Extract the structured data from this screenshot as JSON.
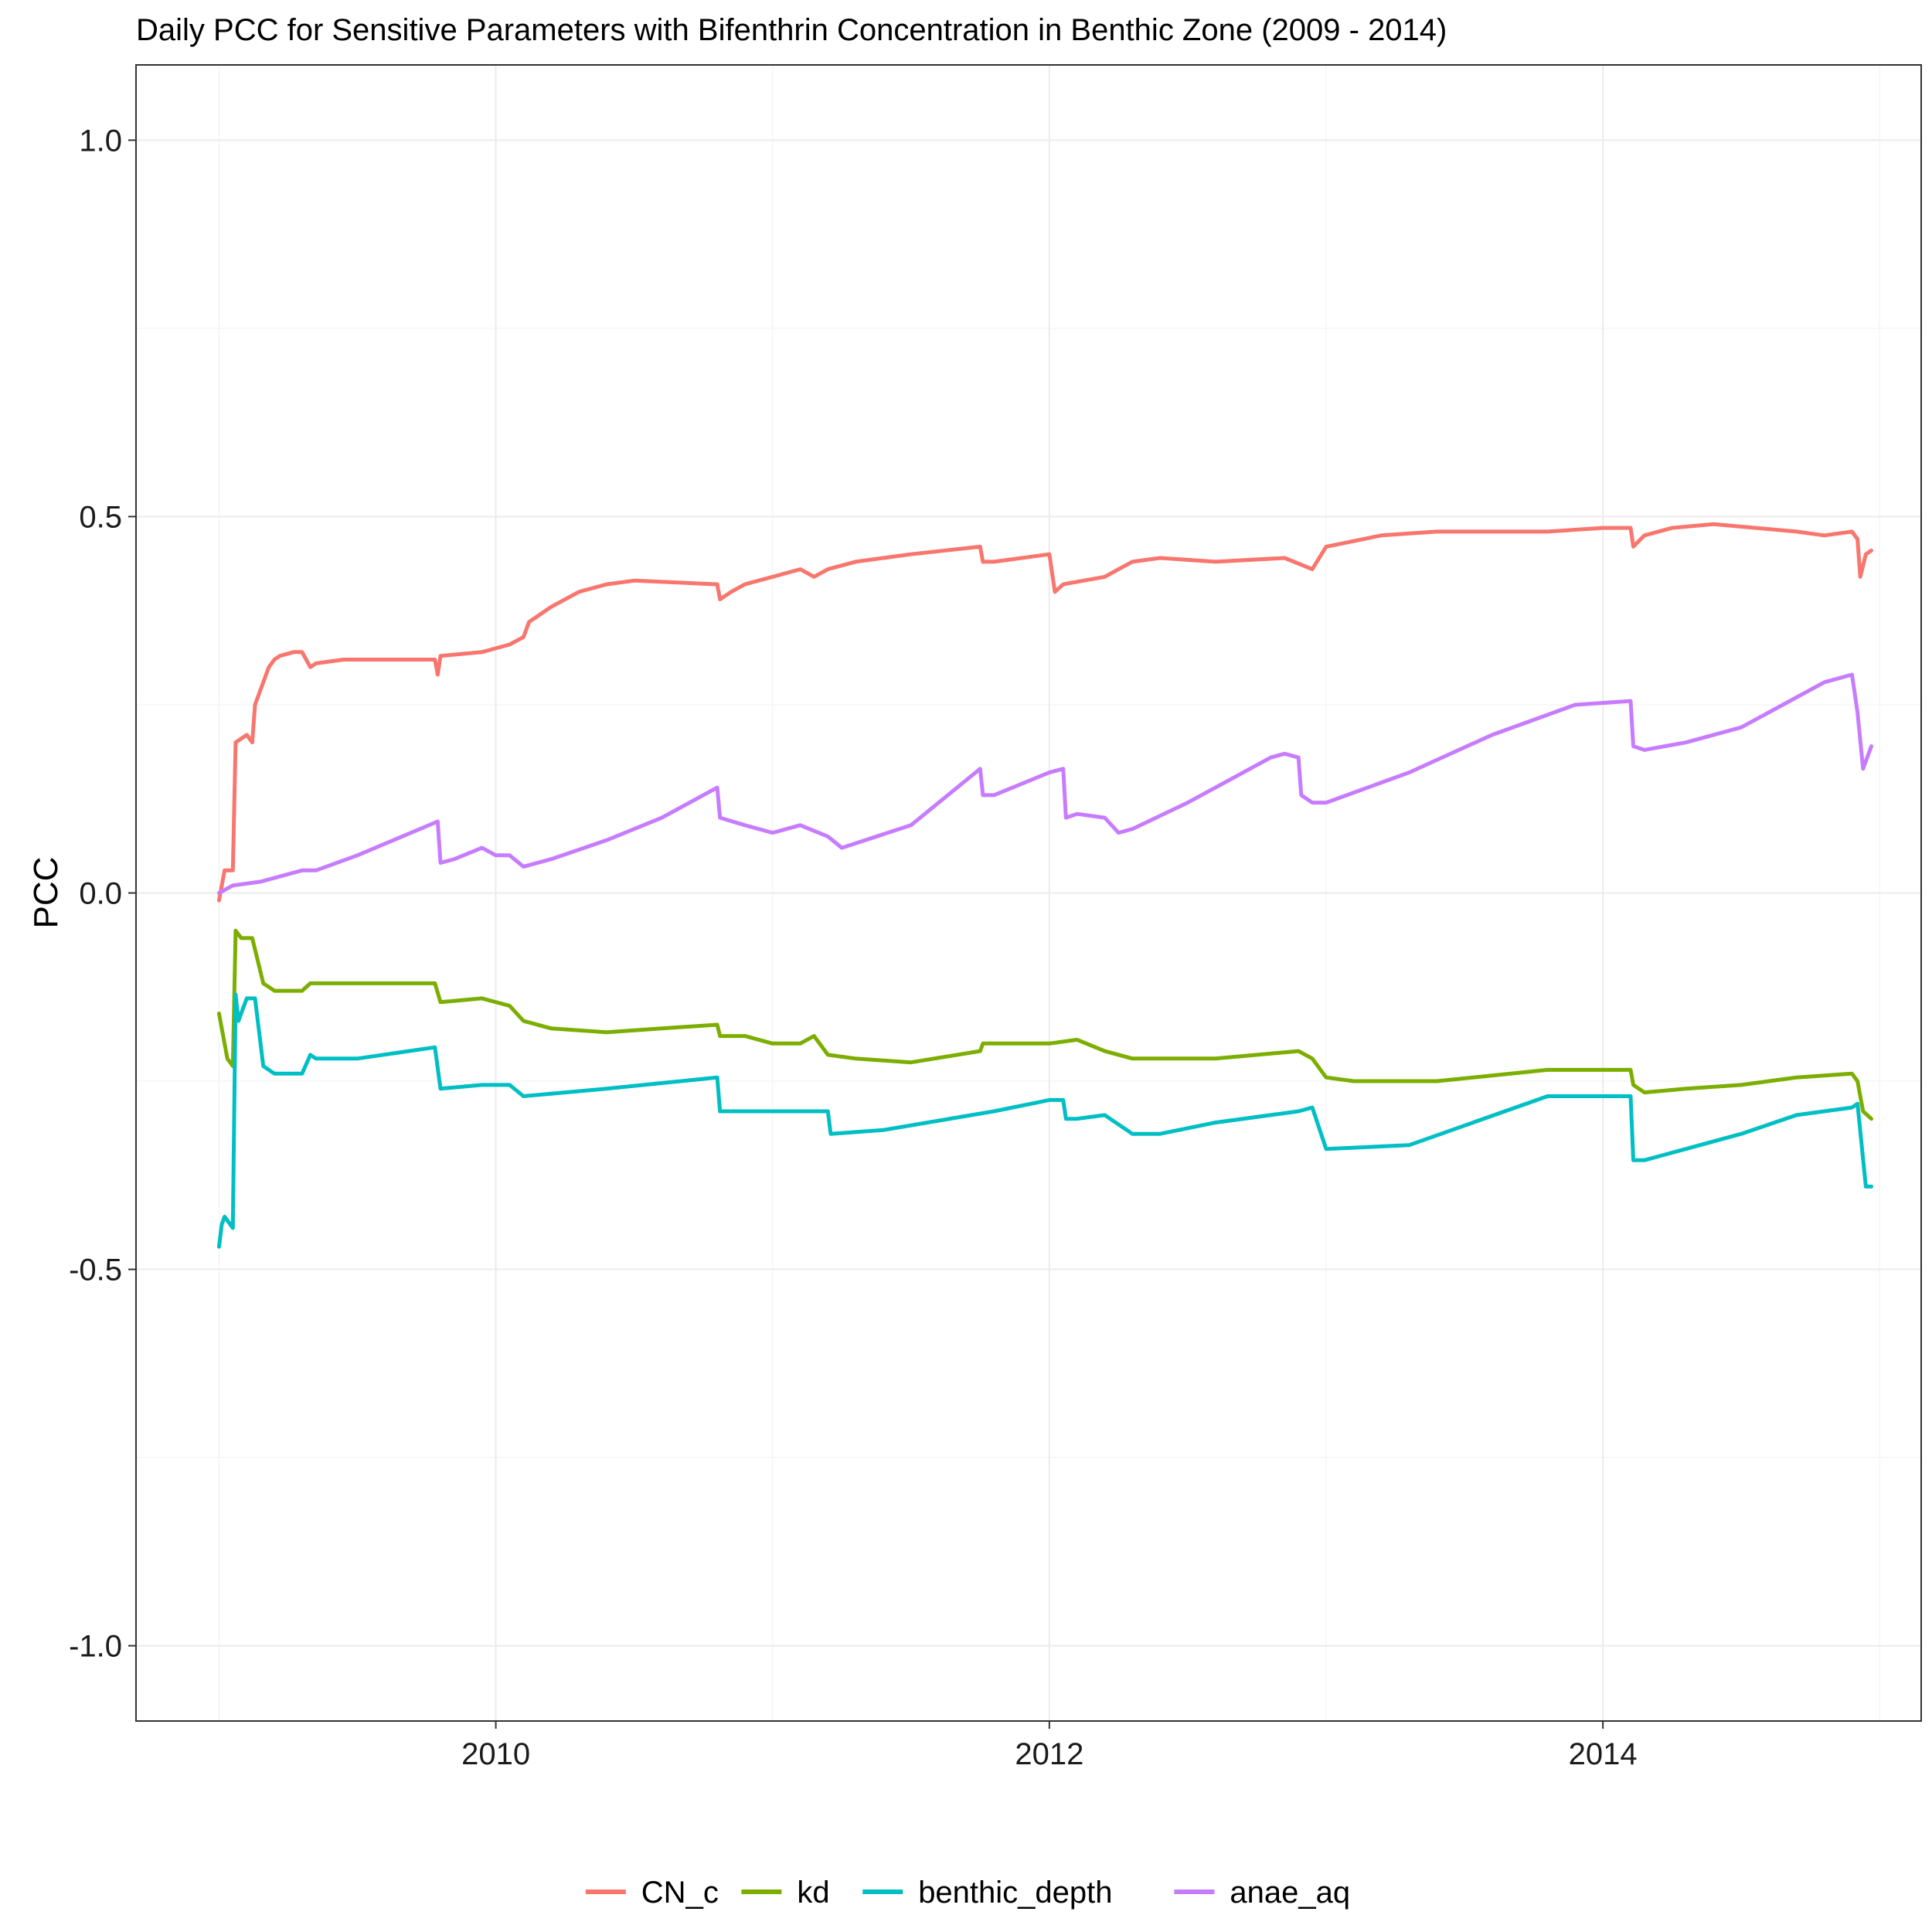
{
  "chart_data": {
    "type": "line",
    "title": "Daily PCC for Sensitive Parameters with Bifenthrin Concentration in Benthic Zone (2009 - 2014)",
    "xlabel": "",
    "ylabel": "PCC",
    "xlim": [
      2008.7,
      2015.15
    ],
    "ylim": [
      -1.1,
      1.1
    ],
    "x_ticks": [
      2010,
      2012,
      2014
    ],
    "x_tick_labels": [
      "2010",
      "2012",
      "2014"
    ],
    "y_ticks": [
      1.0,
      0.5,
      0.0,
      -0.5,
      -1.0
    ],
    "y_tick_labels": [
      "1.0",
      "0.5",
      "0.0",
      "-0.5",
      "-1.0"
    ],
    "grid": true,
    "legend_position": "bottom",
    "series": [
      {
        "name": "CN_c",
        "color": "#F8766D",
        "x": [
          2009.0,
          2009.02,
          2009.05,
          2009.06,
          2009.1,
          2009.12,
          2009.13,
          2009.16,
          2009.18,
          2009.2,
          2009.22,
          2009.27,
          2009.3,
          2009.33,
          2009.35,
          2009.45,
          2009.58,
          2009.73,
          2009.78,
          2009.79,
          2009.8,
          2009.95,
          2010.05,
          2010.1,
          2010.12,
          2010.2,
          2010.3,
          2010.4,
          2010.5,
          2010.8,
          2010.81,
          2010.85,
          2010.9,
          2011.0,
          2011.1,
          2011.15,
          2011.2,
          2011.3,
          2011.5,
          2011.75,
          2011.76,
          2011.8,
          2012.0,
          2012.02,
          2012.05,
          2012.2,
          2012.25,
          2012.3,
          2012.4,
          2012.6,
          2012.85,
          2012.95,
          2013.0,
          2013.2,
          2013.4,
          2013.8,
          2014.0,
          2014.1,
          2014.11,
          2014.15,
          2014.25,
          2014.4,
          2014.7,
          2014.8,
          2014.9,
          2014.92,
          2014.93,
          2014.95,
          2014.97
        ],
        "values": [
          -0.01,
          0.03,
          0.03,
          0.2,
          0.21,
          0.2,
          0.25,
          0.28,
          0.3,
          0.31,
          0.315,
          0.32,
          0.32,
          0.3,
          0.305,
          0.31,
          0.31,
          0.31,
          0.31,
          0.29,
          0.315,
          0.32,
          0.33,
          0.34,
          0.36,
          0.38,
          0.4,
          0.41,
          0.415,
          0.41,
          0.39,
          0.4,
          0.41,
          0.42,
          0.43,
          0.42,
          0.43,
          0.44,
          0.45,
          0.46,
          0.44,
          0.44,
          0.45,
          0.4,
          0.41,
          0.42,
          0.43,
          0.44,
          0.445,
          0.44,
          0.445,
          0.43,
          0.46,
          0.475,
          0.48,
          0.48,
          0.485,
          0.485,
          0.46,
          0.475,
          0.485,
          0.49,
          0.48,
          0.475,
          0.48,
          0.47,
          0.42,
          0.45,
          0.455
        ]
      },
      {
        "name": "kd",
        "color": "#7CAE00",
        "x": [
          2009.0,
          2009.03,
          2009.05,
          2009.06,
          2009.08,
          2009.12,
          2009.16,
          2009.2,
          2009.3,
          2009.33,
          2009.35,
          2009.5,
          2009.78,
          2009.8,
          2009.95,
          2010.05,
          2010.1,
          2010.2,
          2010.4,
          2010.6,
          2010.8,
          2010.81,
          2010.9,
          2011.0,
          2011.1,
          2011.15,
          2011.2,
          2011.3,
          2011.5,
          2011.75,
          2011.76,
          2011.8,
          2012.0,
          2012.1,
          2012.2,
          2012.3,
          2012.6,
          2012.9,
          2012.95,
          2013.0,
          2013.1,
          2013.4,
          2013.8,
          2014.1,
          2014.11,
          2014.15,
          2014.3,
          2014.5,
          2014.7,
          2014.9,
          2014.92,
          2014.94,
          2014.97
        ],
        "values": [
          -0.16,
          -0.22,
          -0.23,
          -0.05,
          -0.06,
          -0.06,
          -0.12,
          -0.13,
          -0.13,
          -0.12,
          -0.12,
          -0.12,
          -0.12,
          -0.145,
          -0.14,
          -0.15,
          -0.17,
          -0.18,
          -0.185,
          -0.18,
          -0.175,
          -0.19,
          -0.19,
          -0.2,
          -0.2,
          -0.19,
          -0.215,
          -0.22,
          -0.225,
          -0.21,
          -0.2,
          -0.2,
          -0.2,
          -0.195,
          -0.21,
          -0.22,
          -0.22,
          -0.21,
          -0.22,
          -0.245,
          -0.25,
          -0.25,
          -0.235,
          -0.235,
          -0.255,
          -0.265,
          -0.26,
          -0.255,
          -0.245,
          -0.24,
          -0.25,
          -0.29,
          -0.3
        ]
      },
      {
        "name": "benthic_depth",
        "color": "#00BFC4",
        "x": [
          2009.0,
          2009.01,
          2009.02,
          2009.05,
          2009.06,
          2009.07,
          2009.1,
          2009.13,
          2009.16,
          2009.2,
          2009.3,
          2009.33,
          2009.35,
          2009.5,
          2009.78,
          2009.8,
          2009.95,
          2010.05,
          2010.1,
          2010.4,
          2010.8,
          2010.81,
          2010.85,
          2011.2,
          2011.21,
          2011.4,
          2011.8,
          2012.0,
          2012.05,
          2012.06,
          2012.1,
          2012.2,
          2012.3,
          2012.31,
          2012.4,
          2012.6,
          2012.9,
          2012.95,
          2013.0,
          2013.3,
          2013.8,
          2014.1,
          2014.11,
          2014.15,
          2014.3,
          2014.5,
          2014.7,
          2014.9,
          2014.92,
          2014.95,
          2014.97
        ],
        "values": [
          -0.47,
          -0.44,
          -0.43,
          -0.445,
          -0.135,
          -0.17,
          -0.14,
          -0.14,
          -0.23,
          -0.24,
          -0.24,
          -0.215,
          -0.22,
          -0.22,
          -0.205,
          -0.26,
          -0.255,
          -0.255,
          -0.27,
          -0.26,
          -0.245,
          -0.29,
          -0.29,
          -0.29,
          -0.32,
          -0.315,
          -0.29,
          -0.275,
          -0.275,
          -0.3,
          -0.3,
          -0.295,
          -0.32,
          -0.32,
          -0.32,
          -0.305,
          -0.29,
          -0.285,
          -0.34,
          -0.335,
          -0.27,
          -0.27,
          -0.355,
          -0.355,
          -0.34,
          -0.32,
          -0.295,
          -0.285,
          -0.28,
          -0.39,
          -0.39
        ]
      },
      {
        "name": "anae_aq",
        "color": "#C77CFF",
        "x": [
          2009.0,
          2009.05,
          2009.15,
          2009.3,
          2009.35,
          2009.5,
          2009.79,
          2009.8,
          2009.85,
          2009.95,
          2010.0,
          2010.05,
          2010.1,
          2010.2,
          2010.4,
          2010.6,
          2010.8,
          2010.81,
          2010.9,
          2011.0,
          2011.1,
          2011.2,
          2011.25,
          2011.5,
          2011.75,
          2011.76,
          2011.8,
          2012.0,
          2012.05,
          2012.06,
          2012.1,
          2012.2,
          2012.25,
          2012.3,
          2012.5,
          2012.8,
          2012.85,
          2012.9,
          2012.91,
          2012.95,
          2013.0,
          2013.3,
          2013.6,
          2013.9,
          2014.1,
          2014.11,
          2014.15,
          2014.3,
          2014.5,
          2014.8,
          2014.9,
          2014.92,
          2014.94,
          2014.97
        ],
        "values": [
          0.0,
          0.01,
          0.015,
          0.03,
          0.03,
          0.05,
          0.095,
          0.04,
          0.045,
          0.06,
          0.05,
          0.05,
          0.035,
          0.045,
          0.07,
          0.1,
          0.14,
          0.1,
          0.09,
          0.08,
          0.09,
          0.075,
          0.06,
          0.09,
          0.165,
          0.13,
          0.13,
          0.16,
          0.165,
          0.1,
          0.105,
          0.1,
          0.08,
          0.085,
          0.12,
          0.18,
          0.185,
          0.18,
          0.13,
          0.12,
          0.12,
          0.16,
          0.21,
          0.25,
          0.255,
          0.195,
          0.19,
          0.2,
          0.22,
          0.28,
          0.29,
          0.24,
          0.165,
          0.195
        ]
      }
    ]
  }
}
